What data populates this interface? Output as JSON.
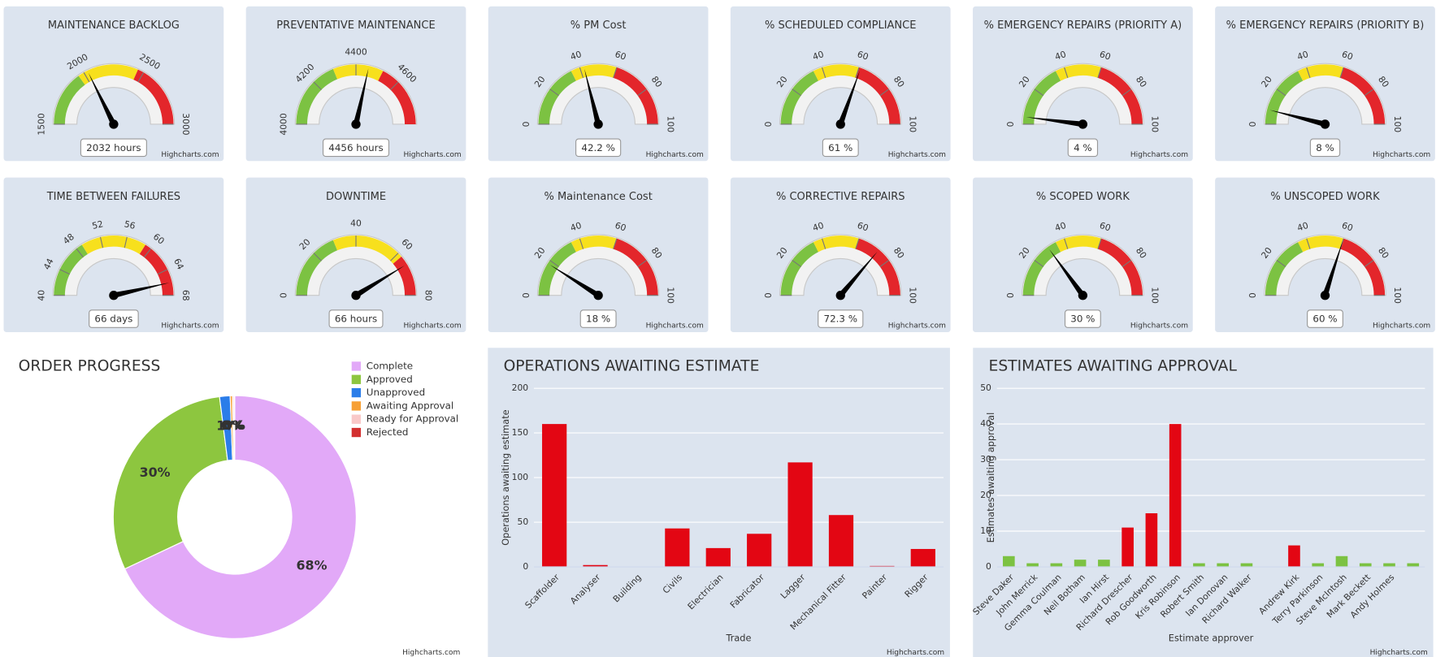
{
  "chart_data": [
    {
      "type": "gauge",
      "title": "MAINTENANCE BACKLOG",
      "value": 2032,
      "value_label": "2032 hours",
      "ylim": [
        1500,
        3000
      ],
      "yticks": [
        1500,
        2000,
        2500,
        3000
      ],
      "bands": [
        {
          "from": 1500,
          "to": 1950,
          "color": "#7cc242"
        },
        {
          "from": 1950,
          "to": 2450,
          "color": "#f7e01d"
        },
        {
          "from": 2450,
          "to": 3000,
          "color": "#e3262b"
        }
      ],
      "credit": "Highcharts.com"
    },
    {
      "type": "gauge",
      "title": "PREVENTATIVE MAINTENANCE",
      "value": 4456,
      "value_label": "4456 hours",
      "ylim": [
        4000,
        4800
      ],
      "yticks": [
        4000,
        4200,
        4400,
        4600
      ],
      "bands": [
        {
          "from": 4000,
          "to": 4300,
          "color": "#7cc242"
        },
        {
          "from": 4300,
          "to": 4520,
          "color": "#f7e01d"
        },
        {
          "from": 4520,
          "to": 4800,
          "color": "#e3262b"
        }
      ],
      "credit": "Highcharts.com"
    },
    {
      "type": "gauge",
      "title": "% PM Cost",
      "value": 42.2,
      "value_label": "42.2 %",
      "ylim": [
        0,
        100
      ],
      "yticks": [
        0,
        20,
        40,
        60,
        80,
        100
      ],
      "bands": [
        {
          "from": 0,
          "to": 35,
          "color": "#7cc242"
        },
        {
          "from": 35,
          "to": 60,
          "color": "#f7e01d"
        },
        {
          "from": 60,
          "to": 100,
          "color": "#e3262b"
        }
      ],
      "credit": "Highcharts.com"
    },
    {
      "type": "gauge",
      "title": "% SCHEDULED COMPLIANCE",
      "value": 61,
      "value_label": "61 %",
      "ylim": [
        0,
        100
      ],
      "yticks": [
        0,
        20,
        40,
        60,
        80,
        100
      ],
      "bands": [
        {
          "from": 0,
          "to": 35,
          "color": "#7cc242"
        },
        {
          "from": 35,
          "to": 60,
          "color": "#f7e01d"
        },
        {
          "from": 60,
          "to": 100,
          "color": "#e3262b"
        }
      ],
      "credit": "Highcharts.com"
    },
    {
      "type": "gauge",
      "title": "% EMERGENCY REPAIRS (PRIORITY A)",
      "value": 4,
      "value_label": "4 %",
      "ylim": [
        0,
        100
      ],
      "yticks": [
        0,
        20,
        40,
        60,
        80,
        100
      ],
      "bands": [
        {
          "from": 0,
          "to": 35,
          "color": "#7cc242"
        },
        {
          "from": 35,
          "to": 60,
          "color": "#f7e01d"
        },
        {
          "from": 60,
          "to": 100,
          "color": "#e3262b"
        }
      ],
      "credit": "Highcharts.com"
    },
    {
      "type": "gauge",
      "title": "% EMERGENCY REPAIRS (PRIORITY B)",
      "value": 8,
      "value_label": "8 %",
      "ylim": [
        0,
        100
      ],
      "yticks": [
        0,
        20,
        40,
        60,
        80,
        100
      ],
      "bands": [
        {
          "from": 0,
          "to": 35,
          "color": "#7cc242"
        },
        {
          "from": 35,
          "to": 60,
          "color": "#f7e01d"
        },
        {
          "from": 60,
          "to": 100,
          "color": "#e3262b"
        }
      ],
      "credit": "Highcharts.com"
    },
    {
      "type": "gauge",
      "title": "TIME BETWEEN FAILURES",
      "value": 66,
      "value_label": "66 days",
      "ylim": [
        40,
        68
      ],
      "yticks": [
        40,
        44,
        48,
        52,
        56,
        60,
        64,
        68
      ],
      "bands": [
        {
          "from": 40,
          "to": 49,
          "color": "#7cc242"
        },
        {
          "from": 49,
          "to": 59,
          "color": "#f7e01d"
        },
        {
          "from": 59,
          "to": 68,
          "color": "#e3262b"
        }
      ],
      "credit": "Highcharts.com"
    },
    {
      "type": "gauge",
      "title": "DOWNTIME",
      "value": 66,
      "value_label": "66 hours",
      "ylim": [
        0,
        80
      ],
      "yticks": [
        0,
        20,
        40,
        60,
        80
      ],
      "bands": [
        {
          "from": 0,
          "to": 30,
          "color": "#7cc242"
        },
        {
          "from": 30,
          "to": 62,
          "color": "#f7e01d"
        },
        {
          "from": 62,
          "to": 80,
          "color": "#e3262b"
        }
      ],
      "credit": "Highcharts.com"
    },
    {
      "type": "gauge",
      "title": "% Maintenance Cost",
      "value": 18,
      "value_label": "18 %",
      "ylim": [
        0,
        100
      ],
      "yticks": [
        0,
        20,
        40,
        60,
        80,
        100
      ],
      "bands": [
        {
          "from": 0,
          "to": 35,
          "color": "#7cc242"
        },
        {
          "from": 35,
          "to": 60,
          "color": "#f7e01d"
        },
        {
          "from": 60,
          "to": 100,
          "color": "#e3262b"
        }
      ],
      "credit": "Highcharts.com"
    },
    {
      "type": "gauge",
      "title": "% CORRECTIVE REPAIRS",
      "value": 72.3,
      "value_label": "72.3 %",
      "ylim": [
        0,
        100
      ],
      "yticks": [
        0,
        20,
        40,
        60,
        80,
        100
      ],
      "bands": [
        {
          "from": 0,
          "to": 35,
          "color": "#7cc242"
        },
        {
          "from": 35,
          "to": 60,
          "color": "#f7e01d"
        },
        {
          "from": 60,
          "to": 100,
          "color": "#e3262b"
        }
      ],
      "credit": "Highcharts.com"
    },
    {
      "type": "gauge",
      "title": "% SCOPED WORK",
      "value": 30,
      "value_label": "30 %",
      "ylim": [
        0,
        100
      ],
      "yticks": [
        0,
        20,
        40,
        60,
        80,
        100
      ],
      "bands": [
        {
          "from": 0,
          "to": 35,
          "color": "#7cc242"
        },
        {
          "from": 35,
          "to": 60,
          "color": "#f7e01d"
        },
        {
          "from": 60,
          "to": 100,
          "color": "#e3262b"
        }
      ],
      "credit": "Highcharts.com"
    },
    {
      "type": "gauge",
      "title": "% UNSCOPED WORK",
      "value": 60,
      "value_label": "60 %",
      "ylim": [
        0,
        100
      ],
      "yticks": [
        0,
        20,
        40,
        60,
        80,
        100
      ],
      "bands": [
        {
          "from": 0,
          "to": 35,
          "color": "#7cc242"
        },
        {
          "from": 35,
          "to": 60,
          "color": "#f7e01d"
        },
        {
          "from": 60,
          "to": 100,
          "color": "#e3262b"
        }
      ],
      "credit": "Highcharts.com"
    },
    {
      "type": "pie",
      "title": "ORDER PROGRESS",
      "categories": [
        "Complete",
        "Approved",
        "Unapproved",
        "Awaiting Approval",
        "Ready for Approval",
        "Rejected"
      ],
      "values": [
        68,
        30,
        1.4,
        0.3,
        0.2,
        0.1
      ],
      "value_labels": [
        "68%",
        "30%",
        "1%",
        "0%",
        "0%",
        "0%"
      ],
      "colors": [
        "#e2a9f8",
        "#8dc63f",
        "#2b7de9",
        "#f7a035",
        "#f9c8c8",
        "#d32f2f"
      ],
      "legend": "top-right",
      "credit": "Highcharts.com"
    },
    {
      "type": "bar",
      "title": "OPERATIONS AWAITING ESTIMATE",
      "categories": [
        "Scaffolder",
        "Analyser",
        "Building",
        "Civils",
        "Electrician",
        "Fabricator",
        "Lagger",
        "Mechanical Fitter",
        "Painter",
        "Rigger"
      ],
      "values": [
        160,
        2,
        0,
        43,
        21,
        37,
        117,
        58,
        1,
        20
      ],
      "color": "#e30613",
      "ylim": [
        0,
        200
      ],
      "yticks": [
        0,
        50,
        100,
        150,
        200
      ],
      "y_label": "Operations awaiting estimate",
      "x_label": "Trade",
      "grid": true,
      "credit": "Highcharts.com"
    },
    {
      "type": "bar",
      "title": "ESTIMATES AWAITING APPROVAL",
      "categories": [
        "Steve Daker",
        "John Merrick",
        "Gemma Coulman",
        "Neil Botham",
        "Ian Hirst",
        "Richard Drescher",
        "Rob Goodworth",
        "Kris Robinson",
        "Robert Smith",
        "Ian Donovan",
        "Richard Walker",
        null,
        "Andrew Kirk",
        "Terry Parkinson",
        "Steve McIntosh",
        "Mark Beckett",
        "Andy Holmes",
        null
      ],
      "values": [
        3,
        1,
        1,
        2,
        2,
        11,
        15,
        40,
        1,
        1,
        1,
        0,
        6,
        1,
        3,
        1,
        1,
        1
      ],
      "colors": [
        "#7cc242",
        "#7cc242",
        "#7cc242",
        "#7cc242",
        "#7cc242",
        "#e30613",
        "#e30613",
        "#e30613",
        "#7cc242",
        "#7cc242",
        "#7cc242",
        "#7cc242",
        "#e30613",
        "#7cc242",
        "#7cc242",
        "#7cc242",
        "#7cc242",
        "#7cc242"
      ],
      "ylim": [
        0,
        50
      ],
      "yticks": [
        0,
        10,
        20,
        30,
        40,
        50
      ],
      "y_label": "Estimates awaiting approval",
      "x_label": "Estimate approver",
      "grid": true,
      "credit": "Highcharts.com"
    }
  ]
}
